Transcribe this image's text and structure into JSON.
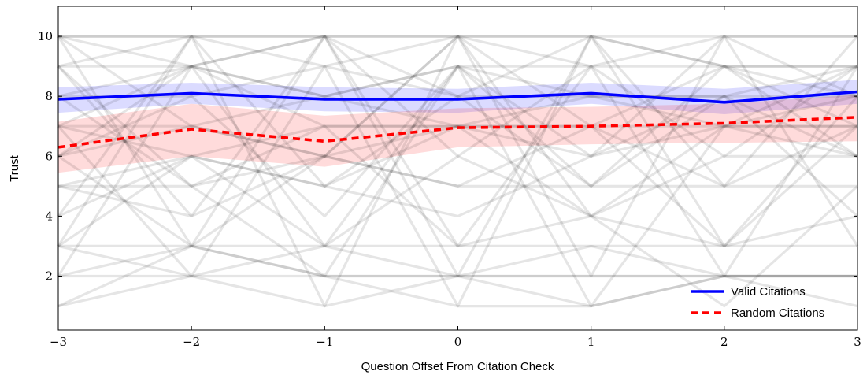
{
  "chart_data": {
    "type": "line",
    "xlabel": "Question Offset From Citation Check",
    "ylabel": "Trust",
    "xlim": [
      -3,
      3
    ],
    "ylim": [
      0.2,
      11.0
    ],
    "x_ticks": [
      -3,
      -2,
      -1,
      0,
      1,
      2,
      3
    ],
    "x_tick_labels": [
      "−3",
      "−2",
      "−1",
      "0",
      "1",
      "2",
      "3"
    ],
    "y_ticks": [
      2,
      4,
      6,
      8,
      10
    ],
    "y_tick_labels": [
      "2",
      "4",
      "6",
      "8",
      "10"
    ],
    "grid": false,
    "legend_position": "bottom-right",
    "x": [
      -3,
      -2,
      -1,
      0,
      1,
      2,
      3
    ],
    "series": [
      {
        "name": "Valid Citations",
        "color": "#0000ff",
        "style": "solid",
        "values": [
          7.9,
          8.1,
          7.9,
          7.9,
          8.1,
          7.8,
          8.15
        ],
        "band_lower": [
          7.45,
          7.75,
          7.5,
          7.45,
          7.75,
          7.4,
          7.75
        ],
        "band_upper": [
          8.3,
          8.45,
          8.3,
          8.25,
          8.45,
          8.25,
          8.55
        ],
        "band_color": "#0000ff"
      },
      {
        "name": "Random Citations",
        "color": "#ff0000",
        "style": "dashed",
        "values": [
          6.3,
          6.9,
          6.5,
          6.95,
          7.0,
          7.1,
          7.3
        ],
        "band_lower": [
          5.45,
          6.0,
          5.65,
          6.3,
          6.4,
          6.45,
          6.5
        ],
        "band_upper": [
          7.15,
          7.75,
          7.35,
          7.6,
          7.65,
          7.75,
          8.05
        ],
        "band_color": "#ff0000"
      }
    ],
    "individual_participants": [
      [
        10,
        10,
        10,
        10,
        10,
        10,
        10
      ],
      [
        10,
        10,
        10,
        10,
        10,
        9,
        9
      ],
      [
        9,
        10,
        9,
        10,
        9,
        10,
        10
      ],
      [
        10,
        9,
        10,
        8,
        10,
        9,
        8
      ],
      [
        9,
        9,
        8,
        9,
        9,
        9,
        9
      ],
      [
        8,
        9,
        8,
        9,
        8,
        8,
        9
      ],
      [
        8,
        8,
        9,
        8,
        8,
        8,
        8
      ],
      [
        7,
        9,
        7,
        7,
        8,
        7,
        8
      ],
      [
        7,
        7,
        8,
        7,
        7,
        9,
        7
      ],
      [
        7,
        6,
        7,
        7,
        7,
        7,
        7
      ],
      [
        6,
        7,
        6,
        7,
        6,
        7,
        7
      ],
      [
        6,
        9,
        3,
        9,
        5,
        9,
        6
      ],
      [
        5,
        6,
        5,
        7,
        4,
        6,
        6
      ],
      [
        5,
        5,
        6,
        5,
        5,
        5,
        5
      ],
      [
        4,
        6,
        3,
        6,
        4,
        3,
        4
      ],
      [
        3,
        3,
        3,
        3,
        3,
        3,
        3
      ],
      [
        3,
        2,
        3,
        2,
        3,
        2,
        2
      ],
      [
        2,
        3,
        2,
        2,
        2,
        2,
        2
      ],
      [
        2,
        2,
        2,
        2,
        2,
        2,
        2
      ],
      [
        1,
        2,
        1,
        2,
        1,
        2,
        1
      ],
      [
        1,
        3,
        2,
        1,
        1,
        2,
        2
      ],
      [
        3,
        10,
        1,
        10,
        2,
        10,
        3
      ],
      [
        10,
        3,
        10,
        2,
        10,
        5,
        10
      ],
      [
        2,
        9,
        10,
        6,
        9,
        2,
        9
      ],
      [
        5,
        4,
        10,
        3,
        4,
        7,
        6
      ],
      [
        7,
        2,
        9,
        1,
        10,
        3,
        8
      ],
      [
        9,
        4,
        6,
        10,
        4,
        1,
        5
      ],
      [
        4,
        10,
        5,
        8,
        5,
        8,
        4
      ],
      [
        8,
        5,
        2,
        9,
        6,
        10,
        8
      ],
      [
        6,
        8,
        4,
        9,
        1,
        7,
        9
      ],
      [
        9,
        5,
        7,
        3,
        9,
        6,
        9
      ],
      [
        10,
        7,
        6,
        5,
        7,
        5,
        7
      ],
      [
        6,
        3,
        6,
        10,
        7,
        3,
        7
      ],
      [
        3,
        6,
        5,
        4,
        6,
        8,
        6
      ]
    ],
    "individual_color": "#000000"
  }
}
